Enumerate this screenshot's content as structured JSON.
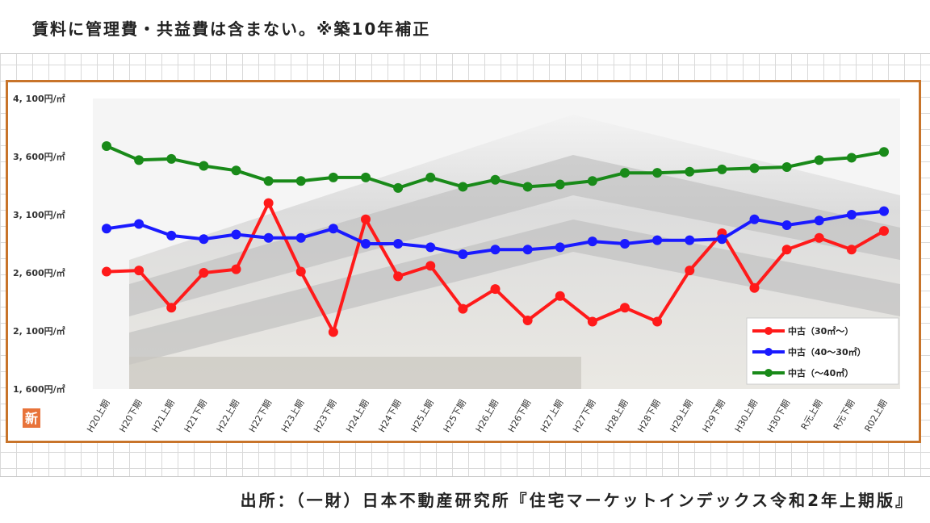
{
  "header": {
    "note": "賃料に管理費・共益費は含まない。※築10年補正"
  },
  "footer": {
    "source": "出所：（一財）日本不動産研究所『住宅マーケットインデックス令和2年上期版』"
  },
  "badge": {
    "label": "新"
  },
  "colors": {
    "frame": "#c8742a",
    "series_red": "#ff1a1a",
    "series_blue": "#1a1aff",
    "series_green": "#198a19"
  },
  "chart_data": {
    "type": "line",
    "y_tick_labels": [
      "4, 100円/㎡",
      "3, 600円/㎡",
      "3, 100円/㎡",
      "2, 600円/㎡",
      "2, 100円/㎡",
      "1, 600円/㎡"
    ],
    "ylim": [
      1600,
      4100
    ],
    "categories": [
      "H20上期",
      "H20下期",
      "H21上期",
      "H21下期",
      "H22上期",
      "H22下期",
      "H23上期",
      "H23下期",
      "H24上期",
      "H24下期",
      "H25上期",
      "H25下期",
      "H26上期",
      "H26下期",
      "H27上期",
      "H27下期",
      "H28上期",
      "H28下期",
      "H29上期",
      "H29下期",
      "H30上期",
      "H30下期",
      "R元上期",
      "R元下期",
      "R02上期"
    ],
    "series": [
      {
        "name": "中古（30㎡～）",
        "color": "#ff1a1a",
        "values": [
          2610,
          2620,
          2300,
          2600,
          2630,
          3200,
          2610,
          2090,
          3060,
          2570,
          2660,
          2290,
          2460,
          2190,
          2400,
          2180,
          2300,
          2180,
          2620,
          2940,
          2470,
          2800,
          2900,
          2800,
          2960
        ]
      },
      {
        "name": "中古（40～30㎡）",
        "color": "#1a1aff",
        "values": [
          2980,
          3020,
          2920,
          2890,
          2930,
          2900,
          2900,
          2980,
          2850,
          2850,
          2820,
          2760,
          2800,
          2800,
          2820,
          2870,
          2850,
          2880,
          2880,
          2890,
          3060,
          3010,
          3050,
          3100,
          3130
        ]
      },
      {
        "name": "中古（～40㎡）",
        "color": "#198a19",
        "values": [
          3690,
          3570,
          3580,
          3520,
          3480,
          3390,
          3390,
          3420,
          3420,
          3330,
          3420,
          3340,
          3400,
          3340,
          3360,
          3390,
          3460,
          3460,
          3470,
          3490,
          3500,
          3510,
          3570,
          3590,
          3640
        ]
      }
    ],
    "legend": "bottom-right",
    "grid": false
  }
}
